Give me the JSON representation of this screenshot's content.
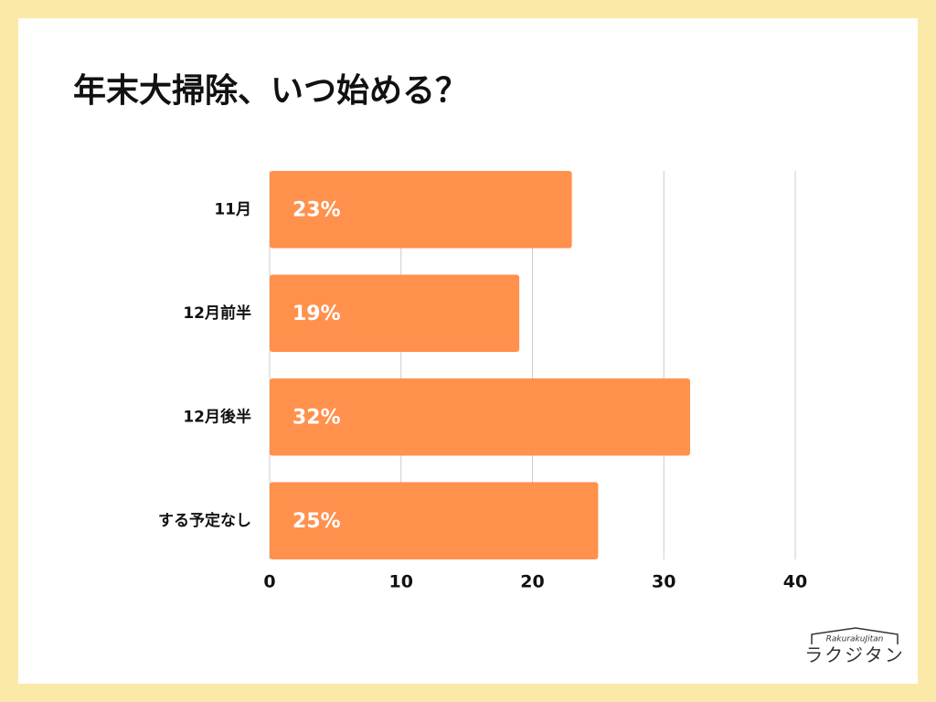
{
  "chart_data": {
    "type": "bar",
    "orientation": "horizontal",
    "title": "年末大掃除、いつ始める？",
    "categories": [
      "11月",
      "12月前半",
      "12月後半",
      "する予定なし"
    ],
    "values": [
      23,
      19,
      32,
      25
    ],
    "value_labels": [
      "23%",
      "19%",
      "32%",
      "25%"
    ],
    "color": "#ff914d",
    "xlim": [
      0,
      40
    ],
    "xticks": [
      0,
      10,
      20,
      30,
      40
    ],
    "grid": true
  },
  "logo": {
    "latin": "RakurakuJitan",
    "kana": "ラクジタン"
  }
}
